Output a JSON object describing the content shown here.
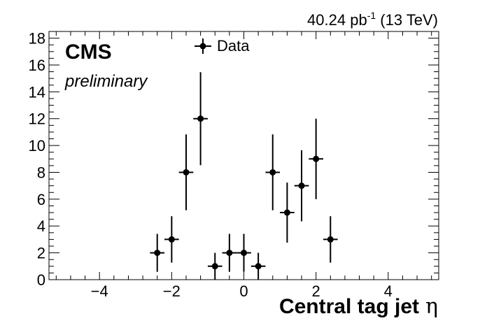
{
  "chart_data": {
    "type": "scatter",
    "xlabel": "Central tag jet",
    "xlabel_symbol": "η",
    "xlim": [
      -5.4,
      5.4
    ],
    "ylim": [
      0,
      18.5
    ],
    "x_ticks": [
      -4,
      -2,
      0,
      2,
      4
    ],
    "x_tick_labels": [
      "−4",
      "−2",
      "0",
      "2",
      "4"
    ],
    "y_ticks": [
      0,
      2,
      4,
      6,
      8,
      10,
      12,
      14,
      16,
      18
    ],
    "y_tick_labels": [
      "0",
      "2",
      "4",
      "6",
      "8",
      "10",
      "12",
      "14",
      "16",
      "18"
    ],
    "lumi_value": "40.24 pb",
    "lumi_exp": "-1",
    "energy": " (13 TeV)",
    "cms_label": "CMS",
    "cms_sublabel": "preliminary",
    "legend_position": "top-center",
    "series": [
      {
        "name": "Data",
        "marker": "circle",
        "color": "#000000",
        "bin_half_width": 0.2,
        "x": [
          -2.4,
          -2.0,
          -1.6,
          -1.2,
          -0.8,
          -0.4,
          0.0,
          0.4,
          0.8,
          1.2,
          1.6,
          2.0,
          2.4
        ],
        "y": [
          2,
          3,
          8,
          12,
          1,
          2,
          2,
          1,
          8,
          5,
          7,
          9,
          3
        ]
      }
    ]
  }
}
